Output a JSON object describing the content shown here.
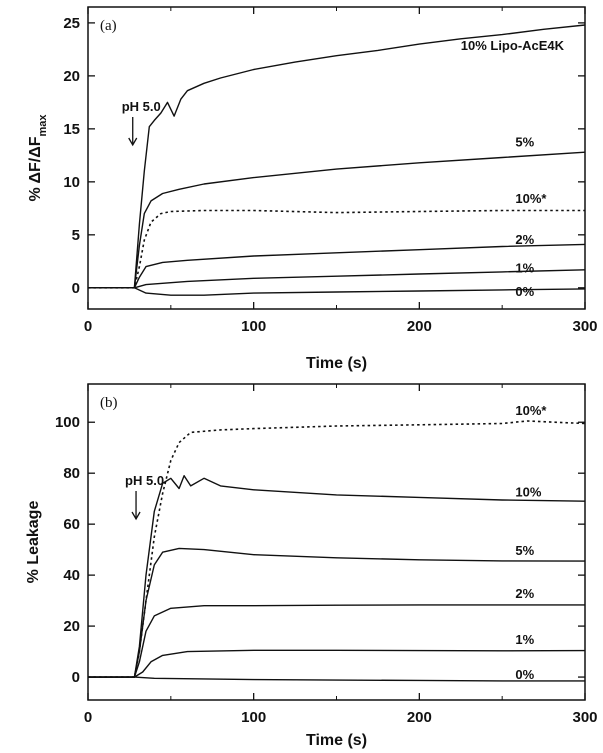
{
  "chart_data": [
    {
      "panel": "(a)",
      "type": "line",
      "xlabel": "Time (s)",
      "ylabel_prefix": "% ",
      "ylabel_main": "ΔF/ΔF",
      "ylabel_sub": "max",
      "xlim": [
        0,
        300
      ],
      "ylim": [
        -2,
        26.5
      ],
      "xticks": [
        0,
        100,
        200,
        300
      ],
      "yticks": [
        0,
        5,
        10,
        15,
        20,
        25
      ],
      "annotation": {
        "text": "pH 5.0",
        "x": 27
      },
      "series": [
        {
          "name": "10% Lipo-AcE4K",
          "dashed": false,
          "label_at": [
            225,
            22.8
          ],
          "points": [
            [
              0,
              0
            ],
            [
              28,
              0
            ],
            [
              31,
              6
            ],
            [
              34,
              11
            ],
            [
              37,
              15.2
            ],
            [
              40,
              15.8
            ],
            [
              44,
              16.5
            ],
            [
              48,
              17.5
            ],
            [
              52,
              16.2
            ],
            [
              56,
              17.8
            ],
            [
              60,
              18.6
            ],
            [
              70,
              19.3
            ],
            [
              80,
              19.8
            ],
            [
              100,
              20.6
            ],
            [
              125,
              21.3
            ],
            [
              150,
              21.9
            ],
            [
              175,
              22.4
            ],
            [
              200,
              23
            ],
            [
              225,
              23.5
            ],
            [
              250,
              23.9
            ],
            [
              275,
              24.4
            ],
            [
              300,
              24.8
            ]
          ]
        },
        {
          "name": "5%",
          "dashed": false,
          "label_at": [
            258,
            13.7
          ],
          "points": [
            [
              0,
              0
            ],
            [
              28,
              0
            ],
            [
              31,
              4
            ],
            [
              34,
              7
            ],
            [
              38,
              8.2
            ],
            [
              45,
              8.9
            ],
            [
              55,
              9.3
            ],
            [
              70,
              9.8
            ],
            [
              100,
              10.4
            ],
            [
              150,
              11.2
            ],
            [
              200,
              11.8
            ],
            [
              250,
              12.3
            ],
            [
              300,
              12.8
            ]
          ]
        },
        {
          "name": "10%*",
          "dashed": true,
          "label_at": [
            258,
            8.4
          ],
          "points": [
            [
              0,
              0
            ],
            [
              28,
              0
            ],
            [
              31,
              2
            ],
            [
              34,
              4.5
            ],
            [
              38,
              6.2
            ],
            [
              44,
              7
            ],
            [
              50,
              7.2
            ],
            [
              70,
              7.3
            ],
            [
              100,
              7.3
            ],
            [
              150,
              7.1
            ],
            [
              200,
              7.2
            ],
            [
              250,
              7.3
            ],
            [
              300,
              7.3
            ]
          ]
        },
        {
          "name": "2%",
          "dashed": false,
          "label_at": [
            258,
            4.5
          ],
          "points": [
            [
              0,
              0
            ],
            [
              28,
              0
            ],
            [
              31,
              1
            ],
            [
              35,
              2
            ],
            [
              45,
              2.4
            ],
            [
              60,
              2.6
            ],
            [
              100,
              3
            ],
            [
              150,
              3.3
            ],
            [
              200,
              3.6
            ],
            [
              250,
              3.9
            ],
            [
              300,
              4.1
            ]
          ]
        },
        {
          "name": "1%",
          "dashed": false,
          "label_at": [
            258,
            1.8
          ],
          "points": [
            [
              0,
              0
            ],
            [
              28,
              0
            ],
            [
              35,
              0.3
            ],
            [
              60,
              0.6
            ],
            [
              100,
              0.9
            ],
            [
              150,
              1.1
            ],
            [
              200,
              1.3
            ],
            [
              250,
              1.5
            ],
            [
              300,
              1.7
            ]
          ]
        },
        {
          "name": "0%",
          "dashed": false,
          "label_at": [
            258,
            -0.4
          ],
          "points": [
            [
              0,
              0
            ],
            [
              28,
              0
            ],
            [
              35,
              -0.5
            ],
            [
              50,
              -0.7
            ],
            [
              70,
              -0.7
            ],
            [
              100,
              -0.5
            ],
            [
              150,
              -0.4
            ],
            [
              200,
              -0.3
            ],
            [
              250,
              -0.2
            ],
            [
              300,
              -0.1
            ]
          ]
        }
      ]
    },
    {
      "panel": "(b)",
      "type": "line",
      "xlabel": "Time (s)",
      "ylabel": "% Leakage",
      "xlim": [
        0,
        300
      ],
      "ylim": [
        -9,
        115
      ],
      "xticks": [
        0,
        100,
        200,
        300
      ],
      "yticks": [
        0,
        20,
        40,
        60,
        80,
        100
      ],
      "annotation": {
        "text": "pH 5.0",
        "x": 29
      },
      "series": [
        {
          "name": "10%*",
          "dashed": true,
          "label_at": [
            258,
            104.5
          ],
          "points": [
            [
              0,
              0
            ],
            [
              28,
              0
            ],
            [
              31,
              10
            ],
            [
              35,
              30
            ],
            [
              40,
              55
            ],
            [
              45,
              72
            ],
            [
              50,
              85
            ],
            [
              55,
              92
            ],
            [
              62,
              96
            ],
            [
              80,
              97
            ],
            [
              100,
              97.5
            ],
            [
              150,
              98.5
            ],
            [
              200,
              99
            ],
            [
              250,
              99.5
            ],
            [
              265,
              100.5
            ],
            [
              300,
              99.5
            ]
          ]
        },
        {
          "name": "10%",
          "dashed": false,
          "label_at": [
            258,
            72.5
          ],
          "points": [
            [
              0,
              0
            ],
            [
              28,
              0
            ],
            [
              31,
              12
            ],
            [
              35,
              40
            ],
            [
              40,
              65
            ],
            [
              45,
              76
            ],
            [
              50,
              78
            ],
            [
              55,
              74
            ],
            [
              58,
              79
            ],
            [
              62,
              75
            ],
            [
              70,
              78
            ],
            [
              80,
              75
            ],
            [
              100,
              73.5
            ],
            [
              150,
              71.5
            ],
            [
              200,
              70.5
            ],
            [
              250,
              69.5
            ],
            [
              300,
              69
            ]
          ]
        },
        {
          "name": "5%",
          "dashed": false,
          "label_at": [
            258,
            49.5
          ],
          "points": [
            [
              0,
              0
            ],
            [
              28,
              0
            ],
            [
              31,
              10
            ],
            [
              35,
              30
            ],
            [
              40,
              44
            ],
            [
              45,
              49
            ],
            [
              55,
              50.5
            ],
            [
              70,
              50
            ],
            [
              100,
              48
            ],
            [
              150,
              46.8
            ],
            [
              200,
              46
            ],
            [
              250,
              45.6
            ],
            [
              300,
              45.5
            ]
          ]
        },
        {
          "name": "2%",
          "dashed": false,
          "label_at": [
            258,
            32.5
          ],
          "points": [
            [
              0,
              0
            ],
            [
              28,
              0
            ],
            [
              31,
              6
            ],
            [
              35,
              18
            ],
            [
              40,
              24
            ],
            [
              50,
              27
            ],
            [
              70,
              28
            ],
            [
              100,
              28
            ],
            [
              150,
              28.2
            ],
            [
              200,
              28.3
            ],
            [
              250,
              28.3
            ],
            [
              300,
              28.3
            ]
          ]
        },
        {
          "name": "1%",
          "dashed": false,
          "label_at": [
            258,
            14.5
          ],
          "points": [
            [
              0,
              0
            ],
            [
              28,
              0
            ],
            [
              33,
              2
            ],
            [
              38,
              6
            ],
            [
              45,
              8.5
            ],
            [
              60,
              10
            ],
            [
              100,
              10.5
            ],
            [
              150,
              10.5
            ],
            [
              200,
              10.4
            ],
            [
              250,
              10.3
            ],
            [
              300,
              10.4
            ]
          ]
        },
        {
          "name": "0%",
          "dashed": false,
          "label_at": [
            258,
            0.8
          ],
          "points": [
            [
              0,
              0
            ],
            [
              28,
              0
            ],
            [
              40,
              -0.5
            ],
            [
              100,
              -1
            ],
            [
              150,
              -1.2
            ],
            [
              200,
              -1.3
            ],
            [
              250,
              -1.5
            ],
            [
              300,
              -1.5
            ]
          ]
        }
      ]
    }
  ]
}
